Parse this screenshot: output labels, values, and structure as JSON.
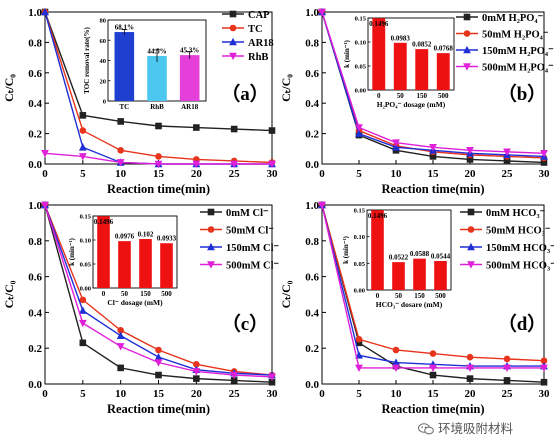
{
  "chart_data": [
    {
      "id": "a",
      "type": "line",
      "panel_label": "（a）",
      "xlabel": "Reaction time(min)",
      "ylabel": "Cₜ/C₀",
      "x": [
        0,
        5,
        10,
        15,
        20,
        25,
        30
      ],
      "xlim": [
        0,
        30
      ],
      "ylim": [
        0,
        1.0
      ],
      "xticks": [
        "0",
        "5",
        "10",
        "15",
        "20",
        "25",
        "30"
      ],
      "yticks": [
        "0.0",
        "0.2",
        "0.4",
        "0.6",
        "0.8",
        "1.0"
      ],
      "legend": "top-right",
      "series": [
        {
          "name": "CAP",
          "color": "#222222",
          "marker": "square",
          "values": [
            1.0,
            0.32,
            0.28,
            0.25,
            0.24,
            0.23,
            0.22
          ]
        },
        {
          "name": "TC",
          "color": "#e8341c",
          "marker": "circle",
          "values": [
            1.0,
            0.22,
            0.09,
            0.05,
            0.03,
            0.02,
            0.01
          ]
        },
        {
          "name": "AR18",
          "color": "#1f2fd6",
          "marker": "triangle",
          "values": [
            1.0,
            0.11,
            0.01,
            0.0,
            0.0,
            0.0,
            0.0
          ]
        },
        {
          "name": "RhB",
          "color": "#e020d8",
          "marker": "triangle-down",
          "values": [
            0.07,
            0.05,
            0.01,
            0.0,
            0.0,
            0.0,
            0.0
          ]
        }
      ],
      "inset": {
        "type": "bar",
        "ylabel": "TOC removal rate(%)",
        "categories": [
          "TC",
          "RhB",
          "AR18"
        ],
        "values": [
          68.1,
          44.5,
          45.3
        ],
        "labels": [
          "68.1%",
          "44.5%",
          "45.3%"
        ],
        "colors": [
          "#1f3fd0",
          "#4cc8f0",
          "#e43fd8"
        ],
        "ylim": [
          0,
          80
        ],
        "yticks": [
          "0",
          "20",
          "40",
          "60",
          "80"
        ]
      }
    },
    {
      "id": "b",
      "type": "line",
      "panel_label": "（b）",
      "xlabel": "Reaction time(min)",
      "ylabel": "Cₜ/C₀",
      "x": [
        0,
        5,
        10,
        15,
        20,
        25,
        30
      ],
      "xlim": [
        0,
        30
      ],
      "ylim": [
        0,
        1.0
      ],
      "xticks": [
        "0",
        "5",
        "10",
        "15",
        "20",
        "25",
        "30"
      ],
      "yticks": [
        "0.0",
        "0.2",
        "0.4",
        "0.6",
        "0.8",
        "1.0"
      ],
      "legend": "top-right",
      "series": [
        {
          "name": "0mM H₂PO₄⁻",
          "color": "#222222",
          "marker": "square",
          "values": [
            1.0,
            0.19,
            0.09,
            0.05,
            0.03,
            0.02,
            0.01
          ]
        },
        {
          "name": "50mM H₂PO₄⁻",
          "color": "#e8341c",
          "marker": "circle",
          "values": [
            1.0,
            0.22,
            0.12,
            0.08,
            0.06,
            0.05,
            0.04
          ]
        },
        {
          "name": "150mM H₂PO₄⁻",
          "color": "#1f2fd6",
          "marker": "triangle",
          "values": [
            1.0,
            0.2,
            0.11,
            0.09,
            0.07,
            0.06,
            0.05
          ]
        },
        {
          "name": "500mM H₂PO₄⁻",
          "color": "#e020d8",
          "marker": "triangle-down",
          "values": [
            1.0,
            0.24,
            0.14,
            0.11,
            0.09,
            0.08,
            0.07
          ]
        }
      ],
      "inset": {
        "type": "bar",
        "ylabel": "k (min⁻¹)",
        "xlabel": "H₂PO₄⁻ dosage (mM)",
        "categories": [
          "0",
          "50",
          "150",
          "500"
        ],
        "values": [
          0.1496,
          0.0983,
          0.0852,
          0.0768
        ],
        "labels": [
          "0.1496",
          "0.0983",
          "0.0852",
          "0.0768"
        ],
        "colors": [
          "#ee1111",
          "#ee1111",
          "#ee1111",
          "#ee1111"
        ],
        "ylim": [
          0,
          0.15
        ],
        "yticks": [
          "0.00",
          "0.05",
          "0.10",
          "0.15"
        ]
      }
    },
    {
      "id": "c",
      "type": "line",
      "panel_label": "（c）",
      "xlabel": "Reaction time(min)",
      "ylabel": "Cₜ/C₀",
      "x": [
        0,
        5,
        10,
        15,
        20,
        25,
        30
      ],
      "xlim": [
        0,
        30
      ],
      "ylim": [
        0,
        1.0
      ],
      "xticks": [
        "0",
        "5",
        "10",
        "15",
        "20",
        "25",
        "30"
      ],
      "yticks": [
        "0.0",
        "0.2",
        "0.4",
        "0.6",
        "0.8",
        "1.0"
      ],
      "legend": "top-right",
      "series": [
        {
          "name": "0mM Cl⁻",
          "color": "#222222",
          "marker": "square",
          "values": [
            1.0,
            0.23,
            0.09,
            0.05,
            0.03,
            0.02,
            0.01
          ]
        },
        {
          "name": "50mM Cl⁻",
          "color": "#e8341c",
          "marker": "circle",
          "values": [
            1.0,
            0.47,
            0.3,
            0.19,
            0.11,
            0.07,
            0.05
          ]
        },
        {
          "name": "150mM Cl⁻",
          "color": "#1f2fd6",
          "marker": "triangle",
          "values": [
            1.0,
            0.41,
            0.27,
            0.15,
            0.08,
            0.06,
            0.05
          ]
        },
        {
          "name": "500mM Cl⁻",
          "color": "#e020d8",
          "marker": "triangle-down",
          "values": [
            1.0,
            0.34,
            0.21,
            0.12,
            0.07,
            0.05,
            0.04
          ]
        }
      ],
      "inset": {
        "type": "bar",
        "ylabel": "k (min⁻¹)",
        "xlabel": "Cl⁻ dosage (mM)",
        "categories": [
          "0",
          "50",
          "150",
          "500"
        ],
        "values": [
          0.1496,
          0.0976,
          0.102,
          0.0933
        ],
        "labels": [
          "0.1496",
          "0.0976",
          "0.102",
          "0.0933"
        ],
        "colors": [
          "#ee1111",
          "#ee1111",
          "#ee1111",
          "#ee1111"
        ],
        "ylim": [
          0,
          0.15
        ],
        "yticks": [
          "0.00",
          "0.05",
          "0.10",
          "0.15"
        ]
      }
    },
    {
      "id": "d",
      "type": "line",
      "panel_label": "（d）",
      "xlabel": "Reaction time(min)",
      "ylabel": "Cₜ/C₀",
      "x": [
        0,
        5,
        10,
        15,
        20,
        25,
        30
      ],
      "xlim": [
        0,
        30
      ],
      "ylim": [
        0,
        1.0
      ],
      "xticks": [
        "0",
        "5",
        "10",
        "15",
        "20",
        "25",
        "30"
      ],
      "yticks": [
        "0.0",
        "0.2",
        "0.4",
        "0.6",
        "0.8",
        "1.0"
      ],
      "legend": "top-right",
      "series": [
        {
          "name": "0mM HCO₃⁻",
          "color": "#222222",
          "marker": "square",
          "values": [
            1.0,
            0.23,
            0.1,
            0.05,
            0.03,
            0.02,
            0.01
          ]
        },
        {
          "name": "50mM HCO₃⁻",
          "color": "#e8341c",
          "marker": "circle",
          "values": [
            1.0,
            0.25,
            0.19,
            0.17,
            0.15,
            0.14,
            0.13
          ]
        },
        {
          "name": "150mM HCO₃⁻",
          "color": "#1f2fd6",
          "marker": "triangle",
          "values": [
            1.0,
            0.16,
            0.12,
            0.11,
            0.1,
            0.1,
            0.1
          ]
        },
        {
          "name": "500mM HCO₃⁻",
          "color": "#e020d8",
          "marker": "triangle-down",
          "values": [
            1.0,
            0.09,
            0.09,
            0.09,
            0.09,
            0.09,
            0.09
          ]
        }
      ],
      "inset": {
        "type": "bar",
        "ylabel": "k (min⁻¹)",
        "xlabel": "HCO₃⁻ dosare (mM)",
        "categories": [
          "0",
          "50",
          "150",
          "500"
        ],
        "values": [
          0.1496,
          0.0522,
          0.0588,
          0.0544
        ],
        "labels": [
          "0.1496",
          "0.0522",
          "0.0588",
          "0.0544"
        ],
        "colors": [
          "#ee1111",
          "#ee1111",
          "#ee1111",
          "#ee1111"
        ],
        "ylim": [
          0,
          0.15
        ],
        "yticks": [
          "0.00",
          "0.05",
          "0.10",
          "0.15"
        ]
      }
    }
  ],
  "watermark": {
    "text": "环境吸附材料"
  }
}
